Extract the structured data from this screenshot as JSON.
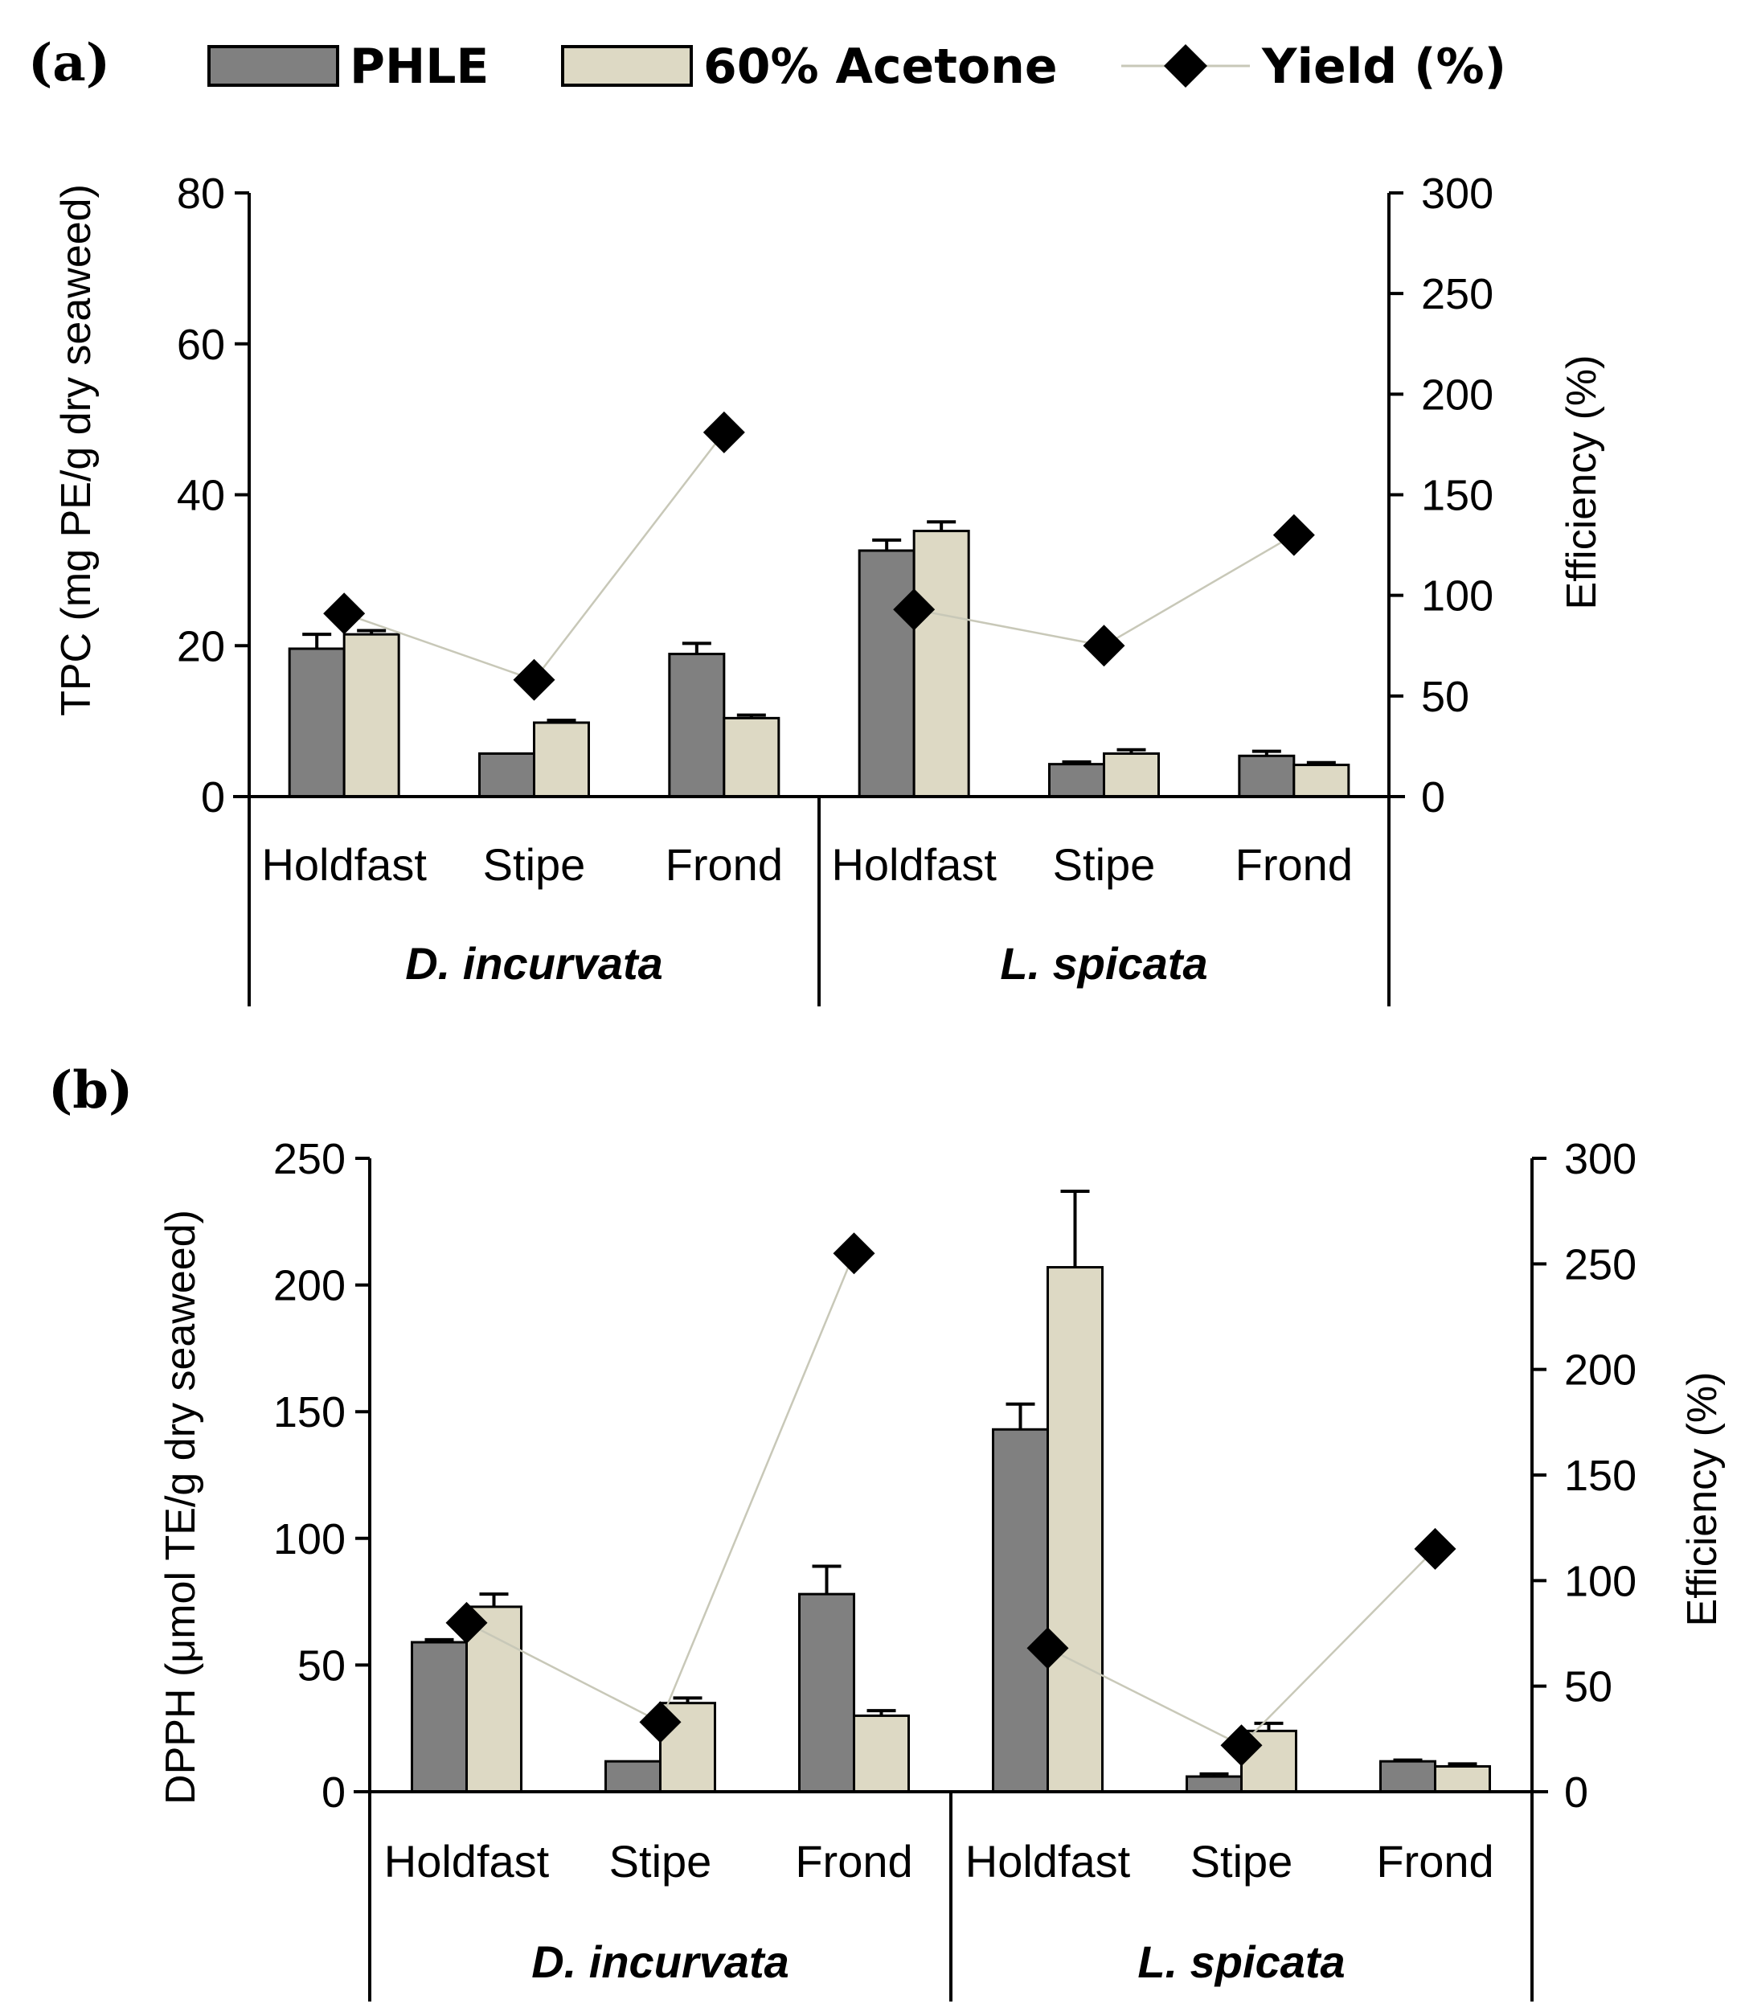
{
  "legend": {
    "entries": [
      {
        "name": "PHLE",
        "color": "#808080",
        "marker": "bar"
      },
      {
        "name": "60% Acetone",
        "color": "#ddd9c4",
        "marker": "bar"
      },
      {
        "name": "Yield (%)",
        "color": "#000000",
        "marker": "diamond-line",
        "line_color": "#c8c8b8"
      }
    ],
    "placement": "top"
  },
  "chart_data": [
    {
      "panel": "(a)",
      "type": "bar",
      "groups": [
        "D. incurvata",
        "L. spicata"
      ],
      "categories": [
        "Holdfast",
        "Stipe",
        "Frond",
        "Holdfast",
        "Stipe",
        "Frond"
      ],
      "ylabel": "TPC (mg PE/g dry seaweed)",
      "ylim": [
        0,
        80
      ],
      "yticks": [
        "0",
        "20",
        "40",
        "60",
        "80"
      ],
      "y2label": "Efficiency (%)",
      "y2lim": [
        0,
        300
      ],
      "y2ticks": [
        "0",
        "50",
        "100",
        "150",
        "200",
        "250",
        "300"
      ],
      "series": [
        {
          "name": "PHLE",
          "axis": "left",
          "values": [
            19.6,
            5.7,
            18.9,
            32.6,
            4.3,
            5.4
          ],
          "errors": [
            1.9,
            0.0,
            1.4,
            1.4,
            0.3,
            0.6
          ]
        },
        {
          "name": "60% Acetone",
          "axis": "right",
          "values": [
            21.5,
            9.8,
            10.4,
            35.2,
            5.7,
            4.2
          ],
          "errors": [
            0.5,
            0.3,
            0.4,
            1.2,
            0.5,
            0.3
          ]
        },
        {
          "name": "Yield (%)",
          "type": "line",
          "axis": "right",
          "values": [
            91,
            58,
            181,
            93,
            75,
            130
          ]
        }
      ]
    },
    {
      "panel": "(b)",
      "type": "bar",
      "groups": [
        "D. incurvata",
        "L. spicata"
      ],
      "categories": [
        "Holdfast",
        "Stipe",
        "Frond",
        "Holdfast",
        "Stipe",
        "Frond"
      ],
      "ylabel": "DPPH (μmol TE/g dry seaweed)",
      "ylim": [
        0,
        250
      ],
      "yticks": [
        "0",
        "50",
        "100",
        "150",
        "200",
        "250"
      ],
      "y2label": "Efficiency (%)",
      "y2lim": [
        0,
        300
      ],
      "y2ticks": [
        "0",
        "50",
        "100",
        "150",
        "200",
        "250",
        "300"
      ],
      "series": [
        {
          "name": "PHLE",
          "axis": "left",
          "values": [
            59,
            12,
            78,
            143,
            6,
            12
          ],
          "errors": [
            1,
            0,
            11,
            10,
            1,
            0.5
          ]
        },
        {
          "name": "60% Acetone",
          "axis": "left",
          "values": [
            73,
            35,
            30,
            207,
            24,
            10
          ],
          "errors": [
            5,
            2,
            2,
            30,
            3,
            1
          ]
        },
        {
          "name": "Yield (%)",
          "type": "line",
          "axis": "right",
          "values": [
            80,
            33,
            255,
            68,
            22,
            115
          ]
        }
      ]
    }
  ]
}
